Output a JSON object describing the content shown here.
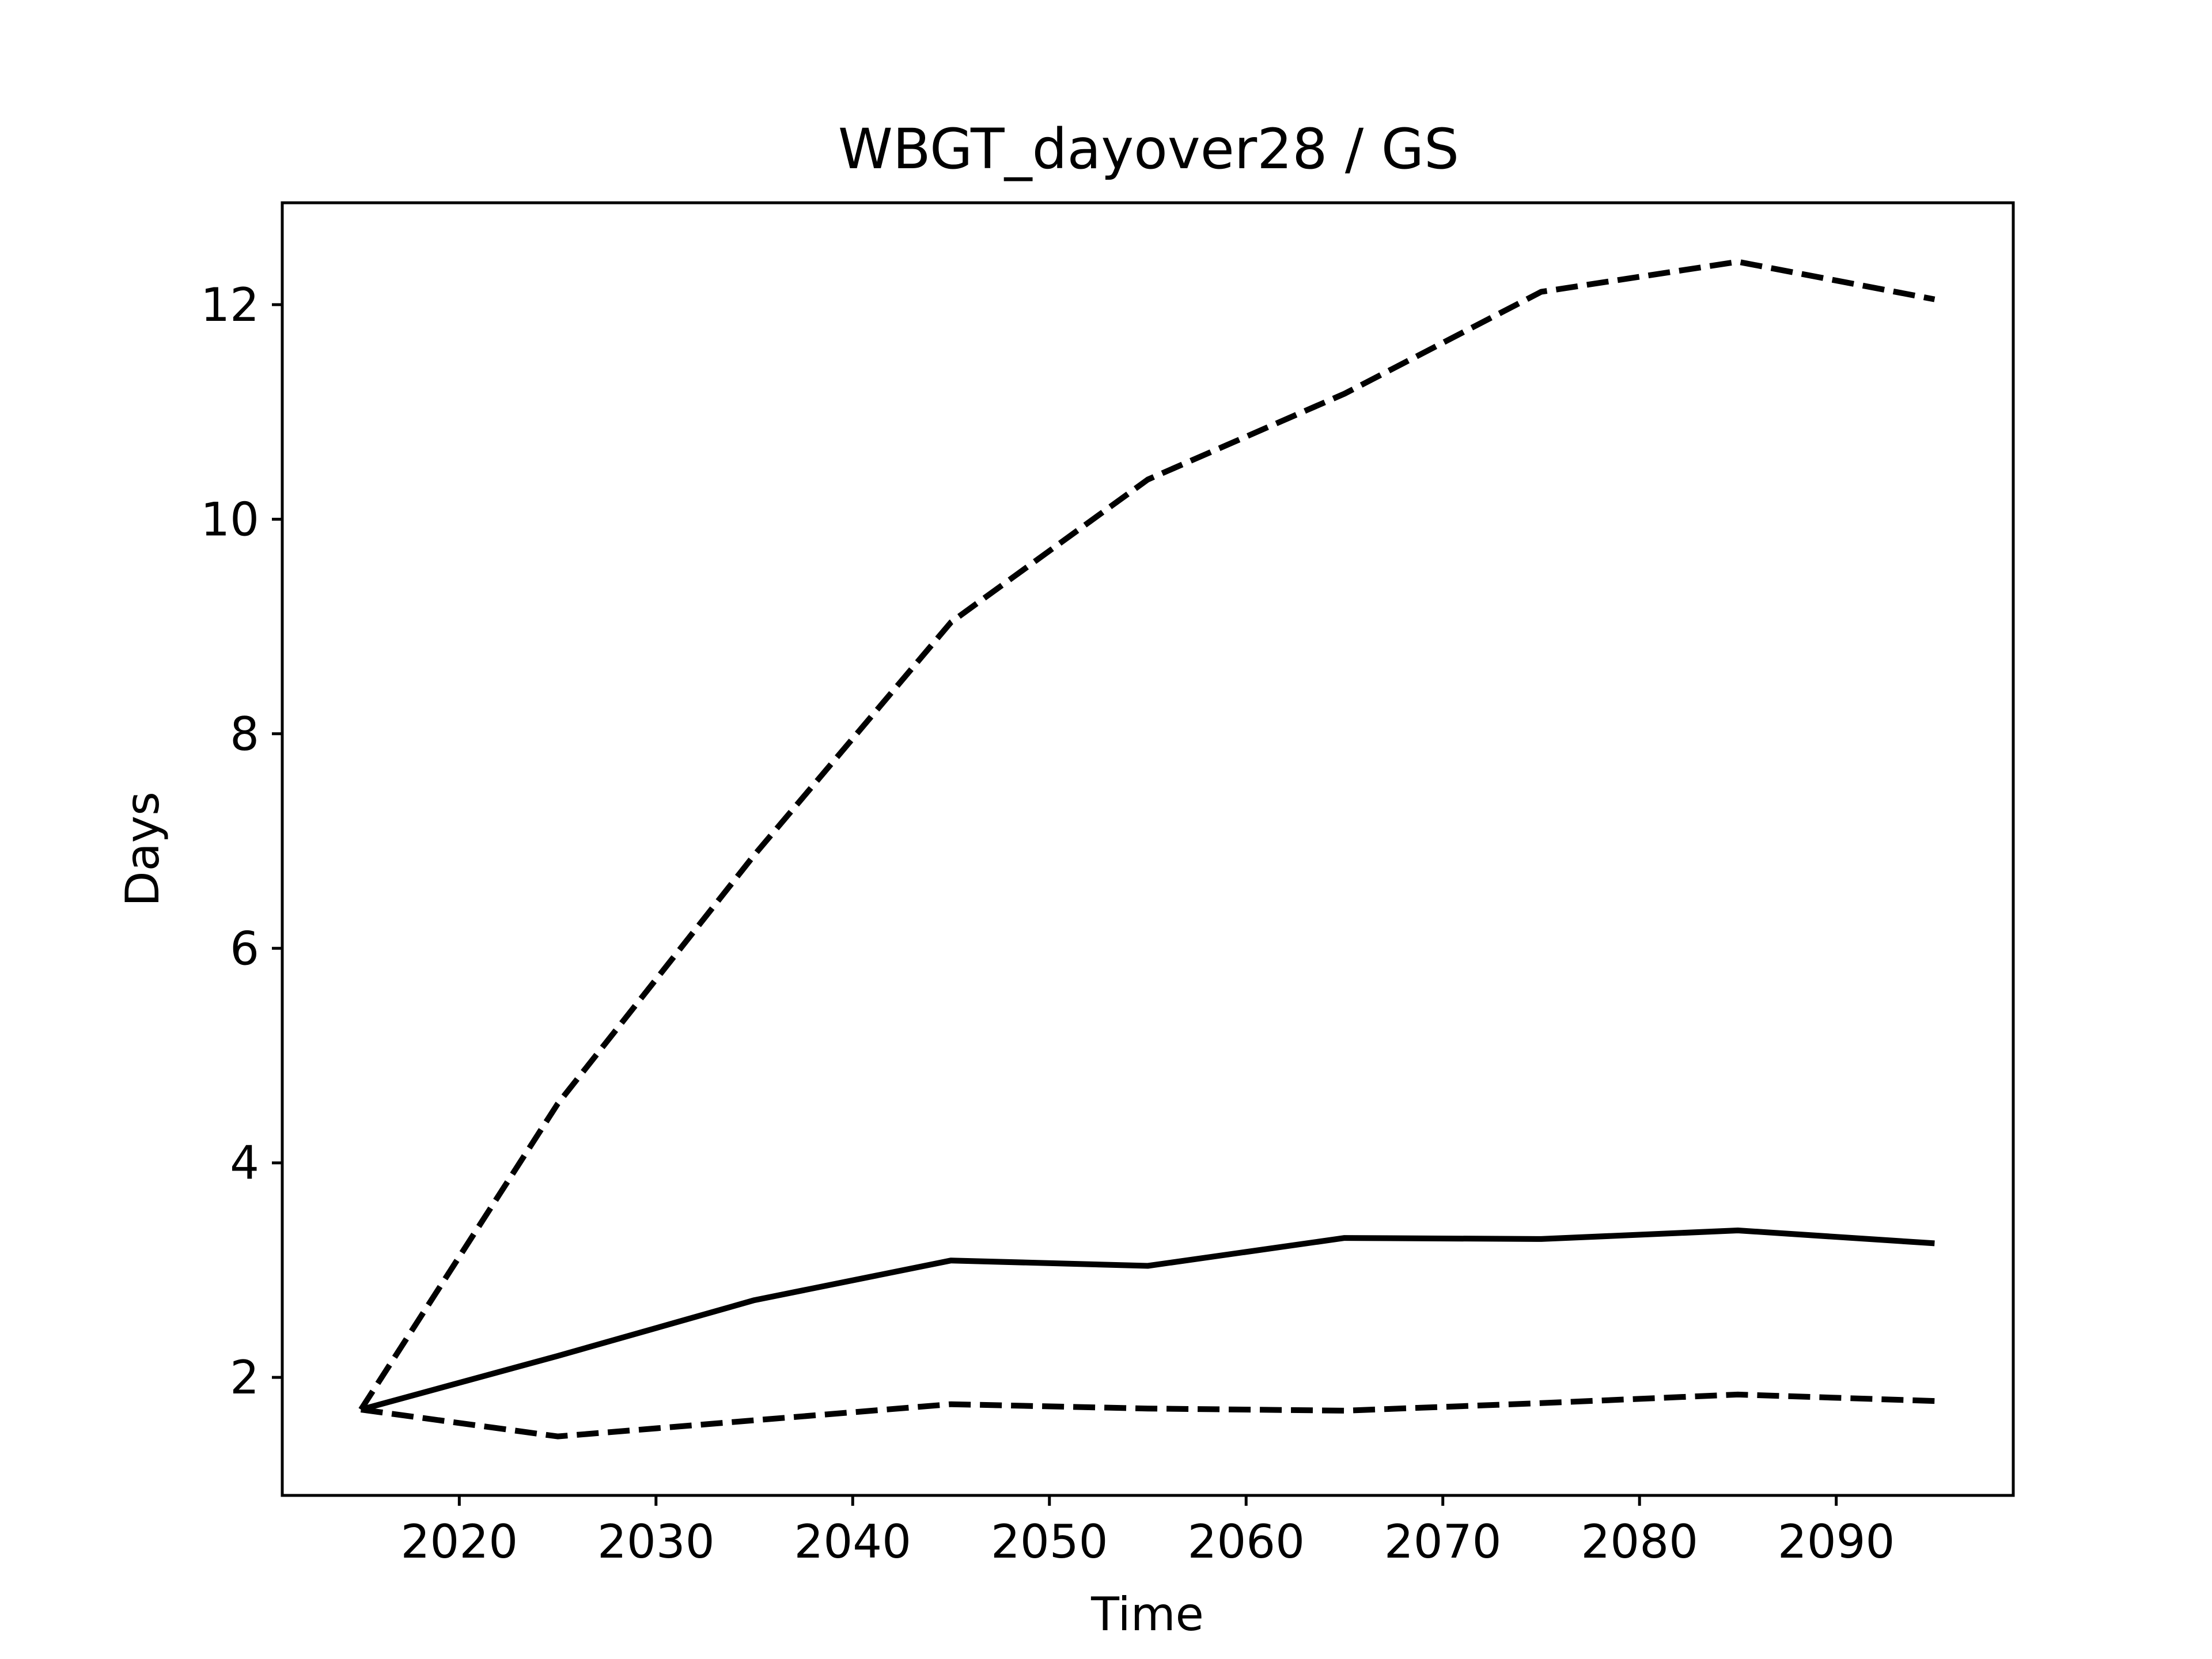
{
  "chart_data": {
    "type": "line",
    "title": "WBGT_dayover28 / GS",
    "xlabel": "Time",
    "ylabel": "Days",
    "xlim": [
      2011,
      2099
    ],
    "ylim": [
      0.9,
      12.95
    ],
    "xticks": [
      2020,
      2030,
      2040,
      2050,
      2060,
      2070,
      2080,
      2090
    ],
    "yticks": [
      2,
      4,
      6,
      8,
      10,
      12
    ],
    "grid": false,
    "legend": "none",
    "x": [
      2015,
      2025,
      2035,
      2045,
      2055,
      2065,
      2075,
      2085,
      2095
    ],
    "series": [
      {
        "style": "solid",
        "color": "#000000",
        "values": [
          1.7,
          2.2,
          2.72,
          3.09,
          3.04,
          3.3,
          3.29,
          3.37,
          3.25
        ]
      },
      {
        "style": "dashed",
        "color": "#000000",
        "values": [
          1.7,
          4.55,
          6.87,
          9.04,
          10.37,
          11.17,
          12.12,
          12.4,
          12.05
        ]
      },
      {
        "style": "dashed",
        "color": "#000000",
        "values": [
          1.7,
          1.45,
          1.6,
          1.75,
          1.71,
          1.69,
          1.76,
          1.84,
          1.78
        ]
      }
    ]
  }
}
